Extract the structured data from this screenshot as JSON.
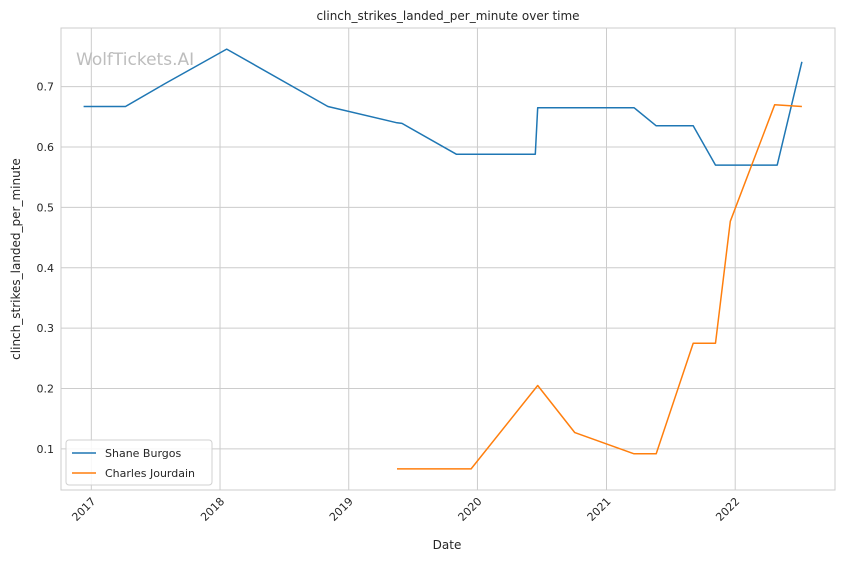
{
  "watermark": "WolfTickets.AI",
  "chart_data": {
    "type": "line",
    "title": "clinch_strikes_landed_per_minute over time",
    "xlabel": "Date",
    "ylabel": "clinch_strikes_landed_per_minute",
    "x_ticks": [
      "2017",
      "2018",
      "2019",
      "2020",
      "2021",
      "2022"
    ],
    "y_ticks": [
      "0.1",
      "0.2",
      "0.3",
      "0.4",
      "0.5",
      "0.6",
      "0.7"
    ],
    "xlim": [
      "2016-10-07",
      "2022-10-11"
    ],
    "ylim": [
      0.032,
      0.797
    ],
    "grid": true,
    "legend_position": "lower-left",
    "series": [
      {
        "name": "Shane Burgos",
        "color": "#1f77b4",
        "points": [
          [
            "2016-12-10",
            0.667
          ],
          [
            "2017-04-08",
            0.667
          ],
          [
            "2017-07-29",
            0.705
          ],
          [
            "2018-01-20",
            0.762
          ],
          [
            "2018-11-03",
            0.667
          ],
          [
            "2019-05-18",
            0.64
          ],
          [
            "2019-06-01",
            0.639
          ],
          [
            "2019-11-02",
            0.588
          ],
          [
            "2020-06-13",
            0.588
          ],
          [
            "2020-06-20",
            0.665
          ],
          [
            "2021-03-20",
            0.665
          ],
          [
            "2021-05-22",
            0.635
          ],
          [
            "2021-09-04",
            0.635
          ],
          [
            "2021-11-06",
            0.57
          ],
          [
            "2022-04-30",
            0.57
          ],
          [
            "2022-07-09",
            0.741
          ]
        ]
      },
      {
        "name": "Charles Jourdain",
        "color": "#ff7f0e",
        "points": [
          [
            "2019-05-18",
            0.067
          ],
          [
            "2019-12-14",
            0.067
          ],
          [
            "2020-06-20",
            0.205
          ],
          [
            "2020-10-03",
            0.127
          ],
          [
            "2021-03-20",
            0.092
          ],
          [
            "2021-05-22",
            0.092
          ],
          [
            "2021-09-04",
            0.275
          ],
          [
            "2021-11-06",
            0.275
          ],
          [
            "2021-12-18",
            0.477
          ],
          [
            "2022-04-23",
            0.67
          ],
          [
            "2022-07-09",
            0.667
          ]
        ]
      }
    ]
  }
}
